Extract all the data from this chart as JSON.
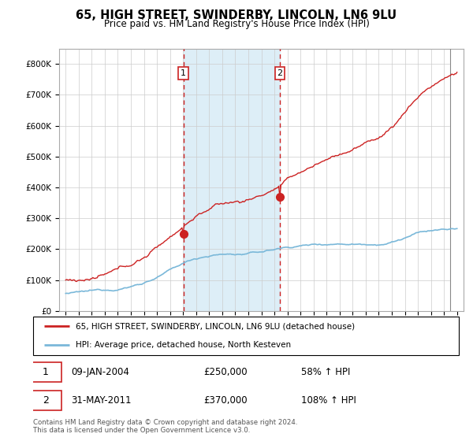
{
  "title": "65, HIGH STREET, SWINDERBY, LINCOLN, LN6 9LU",
  "subtitle": "Price paid vs. HM Land Registry's House Price Index (HPI)",
  "sale1_date": "09-JAN-2004",
  "sale1_price": 250000,
  "sale1_hpi": "58% ↑ HPI",
  "sale2_date": "31-MAY-2011",
  "sale2_price": 370000,
  "sale2_hpi": "108% ↑ HPI",
  "legend_line1": "65, HIGH STREET, SWINDERBY, LINCOLN, LN6 9LU (detached house)",
  "legend_line2": "HPI: Average price, detached house, North Kesteven",
  "footer": "Contains HM Land Registry data © Crown copyright and database right 2024.\nThis data is licensed under the Open Government Licence v3.0.",
  "hpi_color": "#7ab8d9",
  "price_color": "#cc2222",
  "vline_color": "#cc2222",
  "shade_color": "#ddeef7",
  "ylim_max": 850000,
  "sale1_year": 2004.025,
  "sale2_year": 2011.42
}
